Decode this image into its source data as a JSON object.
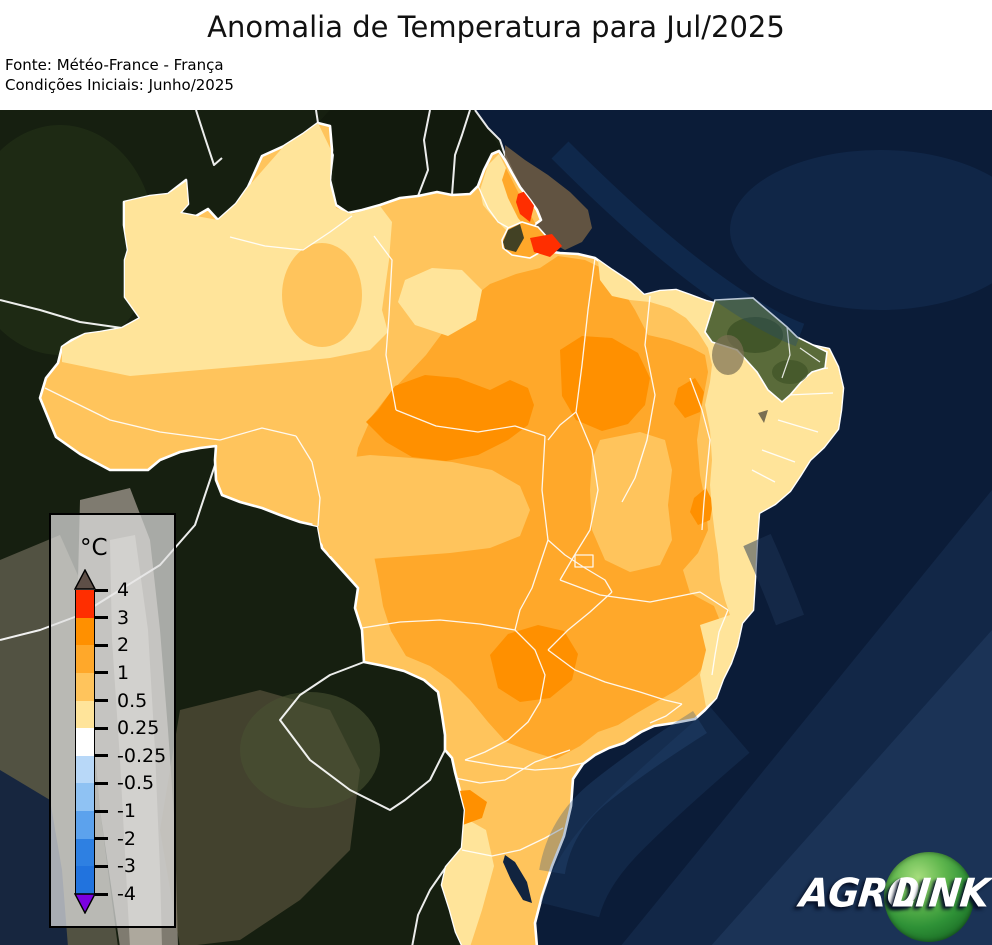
{
  "header": {
    "title": "Anomalia de Temperatura para Jul/2025",
    "source_line1": "Fonte: Météo-France - França",
    "source_line2": "Condições Iniciais: Junho/2025"
  },
  "legend": {
    "unit": "°C",
    "ticks": [
      "4",
      "3",
      "2",
      "1",
      "0.5",
      "0.25",
      "-0.25",
      "-0.5",
      "-1",
      "-2",
      "-3",
      "-4"
    ],
    "cells": [
      {
        "label": "3 to 4",
        "color": "#FF2E00"
      },
      {
        "label": "2 to 3",
        "color": "#FF9000"
      },
      {
        "label": "1 to 2",
        "color": "#FFA82A"
      },
      {
        "label": "0.5 to 1",
        "color": "#FFC45C"
      },
      {
        "label": "0.25 to 0.5",
        "color": "#FFE49A"
      },
      {
        "label": "-0.25 to 0.25",
        "color": "#FFFFFF"
      },
      {
        "label": "-0.5 to -0.25",
        "color": "#B8D8F8"
      },
      {
        "label": "-1 to -0.5",
        "color": "#8FC2F3"
      },
      {
        "label": "-2 to -1",
        "color": "#5CA2ED"
      },
      {
        "label": "-3 to -2",
        "color": "#2E80E2"
      },
      {
        "label": "-4 to -3",
        "color": "#2173DE"
      }
    ],
    "above_range_color": "#5E4F47",
    "below_range_color": "#7B00E0"
  },
  "logo": {
    "word1": "AGRO",
    "word2": "LINK"
  },
  "map": {
    "colors": {
      "ocean": "#0B1C38",
      "ocean_light_1": "#2E5380",
      "ocean_light_2": "#3A608C",
      "shelf_ne": "#1C4678",
      "shelf_e": "#1D3356",
      "shelf_se": "#2B5080",
      "shelf_se2": "#24466F",
      "land_dark": "#161F10",
      "land_guianas": "#121A0D",
      "land_colombia": "#202D15",
      "land_andes": "#9A9288",
      "land_andes_light": "#C6C0B6",
      "land_peru_coast": "#8D8574",
      "land_argentina": "#70664B",
      "land_paraguay": "#4A5132",
      "pacific": "#17263F",
      "muddy_plume": "#6A5A42",
      "marajo_dark": "#2E3524",
      "mask_base": "#5A6B3A",
      "mask_brown": "#7A6F52",
      "mask_darkgreen": "#3E5227",
      "lagoon": "#11243F",
      "border_white": "#FFFFFF",
      "anom_025_05": "#FFE49A",
      "anom_05_1": "#FFC45C",
      "anom_1_2": "#FFA82A",
      "anom_2_3": "#FF9000",
      "anom_3_4": "#FF2E00"
    },
    "regions": [
      {
        "name": "northwest-amazonia-roraima",
        "anomaly": "0.25 to 0.5"
      },
      {
        "name": "west-para-along-amazon",
        "anomaly": "0.25 to 0.5"
      },
      {
        "name": "amapa-interior",
        "anomaly": "0.25 to 0.5"
      },
      {
        "name": "amapa-coast",
        "anomaly": "3 to 4"
      },
      {
        "name": "amazon-mouth-marajo",
        "anomaly": "2 to 4"
      },
      {
        "name": "central-amazonia",
        "anomaly": "0.5 to 1"
      },
      {
        "name": "east-para-maranhao-tocantins-interior",
        "anomaly": "1 to 2"
      },
      {
        "name": "north-mato-grosso",
        "anomaly": "2 to 3"
      },
      {
        "name": "central-mato-grosso",
        "anomaly": "0.5 to 1"
      },
      {
        "name": "goias-minas-sao-paulo-interior",
        "anomaly": "1 to 2"
      },
      {
        "name": "sao-paulo-parana-border",
        "anomaly": "2 to 3"
      },
      {
        "name": "west-santa-catarina",
        "anomaly": "2 to 3"
      },
      {
        "name": "piaui-bahia-interior-spots",
        "anomaly": "2 to 3"
      },
      {
        "name": "northeast-coastal-strip",
        "anomaly": "0.25 to 0.5"
      },
      {
        "name": "central-bahia",
        "anomaly": "0.5 to 1"
      },
      {
        "name": "ceara",
        "anomaly": "no data (satellite visible)"
      },
      {
        "name": "rio-grande-do-sul-interior",
        "anomaly": "0.25 to 0.5"
      },
      {
        "name": "south-coast",
        "anomaly": "0.5 to 1"
      }
    ]
  }
}
